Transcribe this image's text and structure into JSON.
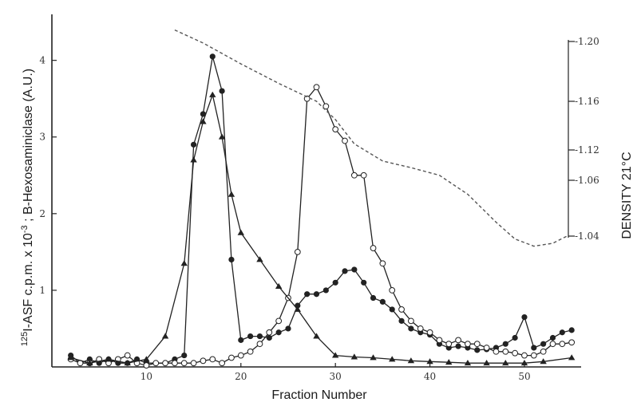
{
  "chart_data": {
    "type": "line",
    "xlabel": "Fraction Number",
    "ylabel_left_prefix": "125",
    "ylabel_left_main": "I-ASF c.p.m. x 10",
    "ylabel_left_exp": "-3",
    "ylabel_left_suffix": " ; B-Hexosaminiclase (A.U.)",
    "ylabel_right": "DENSITY 21°C",
    "xlim": [
      0,
      56
    ],
    "ylim_left": [
      0,
      4.6
    ],
    "ylim_right": [
      1.0,
      1.22
    ],
    "x_ticks": [
      "10",
      "20",
      "30",
      "40",
      "50"
    ],
    "y_ticks_left": [
      "1",
      "2",
      "3",
      "4"
    ],
    "y_ticks_right": [
      "1.04",
      "1.06",
      "1.12",
      "1.16",
      "1.20"
    ],
    "grid": false,
    "series": [
      {
        "marker": "filled-diamond",
        "x": [
          2,
          3,
          4,
          5,
          6,
          7,
          8,
          9,
          10,
          11,
          12,
          13,
          14,
          15,
          16,
          17,
          18,
          19,
          20,
          21,
          22,
          23,
          24,
          25,
          26,
          27,
          28,
          29,
          30,
          31,
          32,
          33,
          34,
          35,
          36,
          37,
          38,
          39,
          40,
          41,
          42,
          43,
          44,
          45,
          46,
          47,
          48,
          49,
          50,
          51,
          52,
          53,
          54,
          55
        ],
        "y": [
          0.15,
          0.05,
          0.1,
          0.05,
          0.1,
          0.05,
          0.05,
          0.1,
          0.05,
          0.05,
          0.05,
          0.1,
          0.15,
          2.9,
          3.3,
          4.05,
          3.6,
          1.4,
          0.35,
          0.4,
          0.4,
          0.38,
          0.45,
          0.5,
          0.8,
          0.95,
          0.95,
          1.0,
          1.1,
          1.25,
          1.27,
          1.1,
          0.9,
          0.85,
          0.75,
          0.6,
          0.5,
          0.45,
          0.42,
          0.3,
          0.25,
          0.27,
          0.25,
          0.22,
          0.23,
          0.25,
          0.3,
          0.38,
          0.65,
          0.25,
          0.3,
          0.38,
          0.45,
          0.48
        ]
      },
      {
        "marker": "open-circle",
        "x": [
          2,
          3,
          4,
          5,
          6,
          7,
          8,
          9,
          10,
          11,
          12,
          13,
          14,
          15,
          16,
          17,
          18,
          19,
          20,
          21,
          22,
          23,
          24,
          25,
          26,
          27,
          28,
          29,
          30,
          31,
          32,
          33,
          34,
          35,
          36,
          37,
          38,
          39,
          40,
          41,
          42,
          43,
          44,
          45,
          46,
          47,
          48,
          49,
          50,
          51,
          52,
          53,
          54,
          55
        ],
        "y": [
          0.1,
          0.05,
          0.05,
          0.1,
          0.05,
          0.1,
          0.15,
          0.05,
          0.02,
          0.05,
          0.05,
          0.05,
          0.05,
          0.05,
          0.08,
          0.1,
          0.05,
          0.12,
          0.15,
          0.2,
          0.3,
          0.45,
          0.6,
          0.9,
          1.5,
          3.5,
          3.65,
          3.4,
          3.1,
          2.95,
          2.5,
          2.5,
          1.55,
          1.35,
          1.0,
          0.75,
          0.6,
          0.5,
          0.45,
          0.35,
          0.3,
          0.35,
          0.3,
          0.3,
          0.25,
          0.2,
          0.2,
          0.18,
          0.15,
          0.15,
          0.2,
          0.3,
          0.3,
          0.32
        ]
      },
      {
        "marker": "filled-triangle",
        "x": [
          2,
          4,
          6,
          8,
          10,
          12,
          14,
          15,
          16,
          17,
          18,
          19,
          20,
          22,
          24,
          26,
          28,
          30,
          32,
          34,
          36,
          38,
          40,
          42,
          44,
          46,
          48,
          50,
          52,
          55
        ],
        "y": [
          0.12,
          0.05,
          0.1,
          0.05,
          0.1,
          0.4,
          1.35,
          2.7,
          3.2,
          3.55,
          3.0,
          2.25,
          1.75,
          1.4,
          1.05,
          0.75,
          0.4,
          0.15,
          0.13,
          0.12,
          0.1,
          0.08,
          0.07,
          0.06,
          0.05,
          0.05,
          0.05,
          0.05,
          0.07,
          0.12
        ]
      },
      {
        "name": "density",
        "axis": "right",
        "style": "dashed",
        "x": [
          13,
          16,
          20,
          24,
          28,
          30,
          32,
          35,
          38,
          41,
          44,
          47,
          49,
          51,
          53,
          54.5
        ],
        "y": [
          1.208,
          1.199,
          1.185,
          1.172,
          1.16,
          1.145,
          1.125,
          1.098,
          1.085,
          1.07,
          1.055,
          1.045,
          1.038,
          1.033,
          1.035,
          1.04
        ]
      }
    ]
  }
}
